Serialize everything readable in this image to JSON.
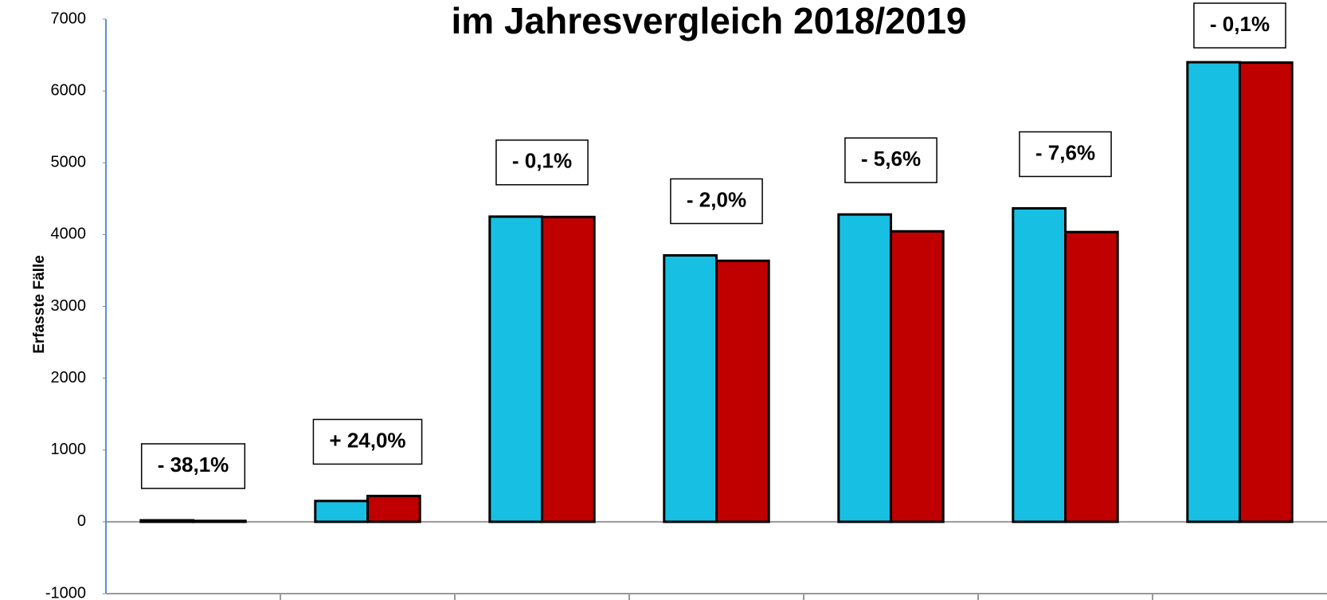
{
  "chart_data": {
    "type": "bar",
    "title": "im Jahresvergleich 2018/2019",
    "y_label": "Erfasste Fälle",
    "categories": [
      null,
      null,
      null,
      null,
      null,
      null,
      null
    ],
    "series": [
      {
        "color": "#17bfe3",
        "values": [
          21,
          290,
          4250,
          3710,
          4280,
          4365,
          6400
        ]
      },
      {
        "color": "#c00000",
        "values": [
          13,
          360,
          4245,
          3635,
          4045,
          4035,
          6395
        ]
      }
    ],
    "annotations": [
      "- 38,1%",
      "+ 24,0%",
      "- 0,1%",
      "- 2,0%",
      "- 5,6%",
      "- 7,6%",
      "- 0,1%"
    ],
    "ylim": [
      -1000,
      7000
    ],
    "yticks": [
      -1000,
      0,
      1000,
      2000,
      3000,
      4000,
      5000,
      6000,
      7000
    ],
    "grid": false
  }
}
